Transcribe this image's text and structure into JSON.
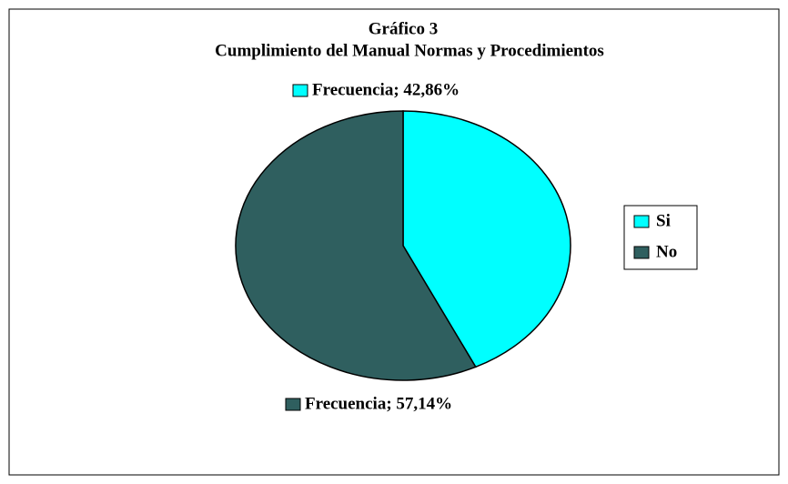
{
  "chart_data": {
    "type": "pie",
    "title": "Gráfico 3",
    "subtitle": "Cumplimiento del Manual Normas y Procedimientos",
    "categories": [
      "Si",
      "No"
    ],
    "values": [
      42.86,
      57.14
    ],
    "value_labels": [
      "Frecuencia; 42,86%",
      "Frecuencia; 57,14%"
    ],
    "colors": [
      "#00ffff",
      "#2f5f5f"
    ],
    "legend": "right"
  }
}
